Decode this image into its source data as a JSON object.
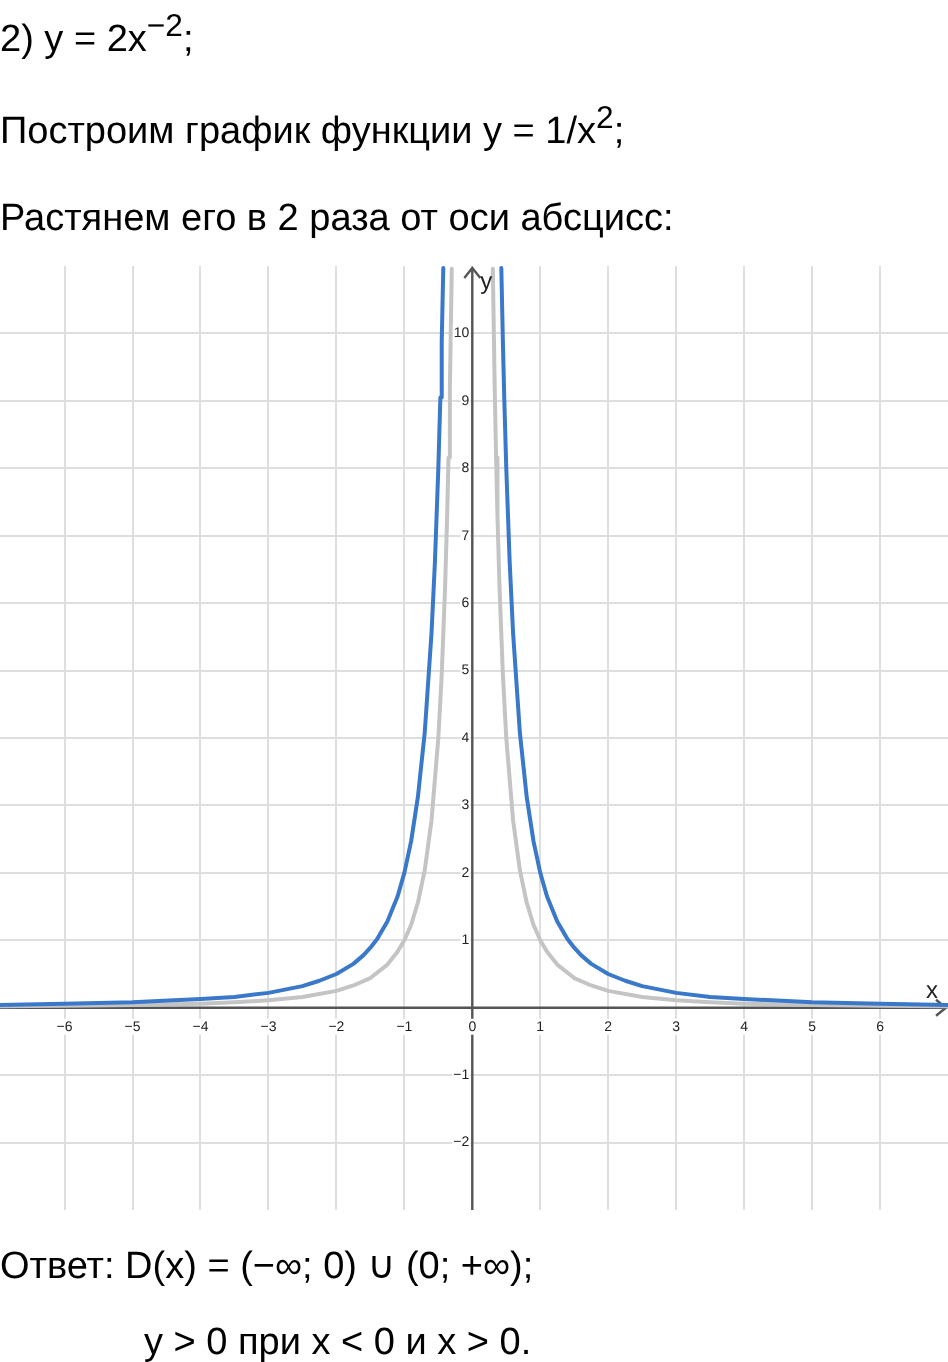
{
  "chart_data": {
    "type": "line",
    "title": "2) y = 2x$^{−2}$;",
    "subtitle": "Построим график функции y = 1/x$^{2}$;\nРастянем его в 2 раза от оси абсцисс:",
    "xlabel": "x",
    "ylabel": "y",
    "xlim": [
      -6.95,
      7
    ],
    "ylim": [
      -3,
      11
    ],
    "xticks": [
      {
        "value": -6,
        "label": "−6"
      },
      {
        "value": -5,
        "label": "−5"
      },
      {
        "value": -4,
        "label": "−4"
      },
      {
        "value": -3,
        "label": "−3"
      },
      {
        "value": -2,
        "label": "−2"
      },
      {
        "value": -1,
        "label": "−1"
      },
      0,
      1,
      2,
      3,
      4,
      5,
      6
    ],
    "yticks": [
      {
        "value": -2,
        "label": "−2"
      },
      {
        "value": -1,
        "label": "−1"
      },
      {
        "value": 0,
        "label": null
      },
      1,
      2,
      3,
      4,
      5,
      6,
      7,
      8,
      9,
      10
    ],
    "grid": true,
    "series": [
      {
        "color": "#3a78c9",
        "x": [
          -6.95,
          -6,
          -5,
          -4,
          -3.5,
          -3,
          -2.5,
          -2.25,
          -2,
          -1.75,
          -1.6,
          -1.5,
          -1.4,
          -1.25,
          -1.1,
          -1,
          -0.9,
          -0.8,
          -0.7,
          -0.6,
          -0.55,
          -0.5,
          -0.47,
          -0.45,
          -0.427,
          0,
          0.427,
          0.45,
          0.47,
          0.5,
          0.55,
          0.6,
          0.7,
          0.8,
          0.9,
          1,
          1.1,
          1.25,
          1.4,
          1.5,
          1.6,
          1.75,
          2,
          2.25,
          2.5,
          3,
          3.5,
          4,
          5,
          6,
          7
        ],
        "values": [
          0.04,
          0.06,
          0.08,
          0.13,
          0.16,
          0.22,
          0.32,
          0.4,
          0.5,
          0.65,
          0.78,
          0.89,
          1.02,
          1.28,
          1.65,
          2,
          2.47,
          3.13,
          4.08,
          5.56,
          6.61,
          8,
          9.05,
          9.88,
          10.97,
          null,
          10.97,
          9.88,
          9.05,
          8,
          6.61,
          5.56,
          4.08,
          3.13,
          2.47,
          2,
          1.65,
          1.28,
          1.02,
          0.89,
          0.78,
          0.65,
          0.5,
          0.4,
          0.32,
          0.22,
          0.16,
          0.13,
          0.08,
          0.06,
          0.04
        ]
      },
      {
        "color": "#c4c4c4",
        "x": [
          -6.95,
          -6,
          -5,
          -4,
          -3.5,
          -3,
          -2.5,
          -2,
          -1.75,
          -1.5,
          -1.25,
          -1.1,
          -1,
          -0.9,
          -0.8,
          -0.7,
          -0.6,
          -0.5,
          -0.45,
          -0.4,
          -0.37,
          -0.35,
          -0.33,
          -0.302,
          0,
          0.302,
          0.33,
          0.35,
          0.37,
          0.4,
          0.45,
          0.5,
          0.6,
          0.7,
          0.8,
          0.9,
          1,
          1.1,
          1.25,
          1.5,
          1.75,
          2,
          2.5,
          3,
          3.5,
          4,
          5,
          6,
          7
        ],
        "values": [
          0.02,
          0.03,
          0.04,
          0.06,
          0.08,
          0.11,
          0.16,
          0.25,
          0.33,
          0.44,
          0.64,
          0.83,
          1,
          1.23,
          1.56,
          2.04,
          2.78,
          4,
          4.94,
          6.25,
          7.3,
          8.16,
          9.18,
          10.96,
          null,
          10.96,
          9.18,
          8.16,
          7.3,
          6.25,
          4.94,
          4,
          2.78,
          2.04,
          1.56,
          1.23,
          1,
          0.83,
          0.64,
          0.44,
          0.33,
          0.25,
          0.16,
          0.11,
          0.08,
          0.06,
          0.04,
          0.03,
          0.02
        ]
      }
    ],
    "annotations": [
      "Ответ: D(x) = (−∞;  0) ∪ (0; +∞);",
      "y > 0 при x < 0 и x > 0."
    ]
  }
}
